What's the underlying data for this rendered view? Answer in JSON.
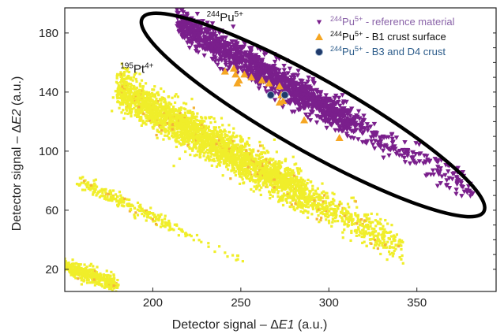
{
  "chart_data": {
    "type": "scatter",
    "title": "",
    "xlabel": "Detector signal – ΔE1 (a.u.)",
    "ylabel": "Detector signal – ΔE2 (a.u.)",
    "xlim": [
      150,
      395
    ],
    "ylim": [
      5,
      197
    ],
    "x_ticks": [
      200,
      250,
      300,
      350
    ],
    "y_ticks": [
      20,
      60,
      100,
      140,
      180
    ],
    "grid": false,
    "legend_position": "top-right",
    "annotations": [
      {
        "id": "pu",
        "base": "Pu",
        "mass": "244",
        "charge": "5+",
        "x": 241,
        "y": 188
      },
      {
        "id": "pt",
        "base": "Pt",
        "mass": "195",
        "charge": "4+",
        "x": 191,
        "y": 153
      }
    ],
    "ellipse": {
      "label": "244Pu5+ region",
      "center": [
        285,
        139
      ],
      "endpoints": [
        [
          194,
          190
        ],
        [
          388,
          59
        ]
      ]
    },
    "series": [
      {
        "name": "244Pu5+ - reference material",
        "legend_prefix": "244Pu5+",
        "legend_suffix": " - reference material",
        "legend_color": "#8a63a8",
        "marker": "triangle-down",
        "color": "#7a1f8c",
        "distribution": {
          "line_start": [
            215,
            186
          ],
          "line_end": [
            380,
            74
          ],
          "core_range": [
            215,
            310
          ],
          "tail_range": [
            310,
            382
          ],
          "spread": 5.5,
          "n_points": 1500
        }
      },
      {
        "name": "244Pu5+ - B1 crust surface",
        "legend_prefix": "244Pu5+",
        "legend_suffix": " - B1 crust surface",
        "legend_color": "#111111",
        "marker": "triangle-up",
        "color": "#f5a623",
        "points": [
          [
            241,
            154
          ],
          [
            246,
            156
          ],
          [
            247,
            152
          ],
          [
            249,
            148
          ],
          [
            248,
            146
          ],
          [
            252,
            152
          ],
          [
            256,
            150
          ],
          [
            262,
            148
          ],
          [
            266,
            146
          ],
          [
            272,
            144
          ],
          [
            273,
            138
          ],
          [
            272,
            133
          ],
          [
            274,
            134
          ],
          [
            286,
            121
          ],
          [
            306,
            109
          ]
        ]
      },
      {
        "name": "244Pu5+ - B3 and D4 crust",
        "legend_prefix": "244Pu5+",
        "legend_suffix": " - B3 and D4 crust",
        "legend_color": "#2b5b8a",
        "marker": "circle",
        "color": "#1f3a6b",
        "points": [
          [
            267,
            138
          ],
          [
            275,
            138
          ]
        ]
      },
      {
        "name": "195Pt4+ main band",
        "marker": "dot",
        "color": "#f0ee2a",
        "distribution": {
          "line_start": [
            180,
            142
          ],
          "line_end": [
            335,
            38
          ],
          "core_range": [
            180,
            285
          ],
          "tail_range": [
            285,
            342
          ],
          "spread": 6.5,
          "n_points": 3400
        }
      },
      {
        "name": "195Pt4+ minor band",
        "marker": "dot",
        "color": "#f0ee2a",
        "distribution": {
          "line_start": [
            158,
            80
          ],
          "line_end": [
            250,
            26
          ],
          "core_range": [
            158,
            210
          ],
          "tail_range": [
            210,
            250
          ],
          "spread": 2.2,
          "n_points": 260
        }
      },
      {
        "name": "195Pt4+ low cluster",
        "marker": "dot",
        "color": "#f0ee2a",
        "distribution": {
          "line_start": [
            150,
            22
          ],
          "line_end": [
            176,
            11
          ],
          "core_range": [
            150,
            176
          ],
          "tail_range": [
            176,
            178
          ],
          "spread": 2.5,
          "n_points": 420
        }
      }
    ]
  }
}
